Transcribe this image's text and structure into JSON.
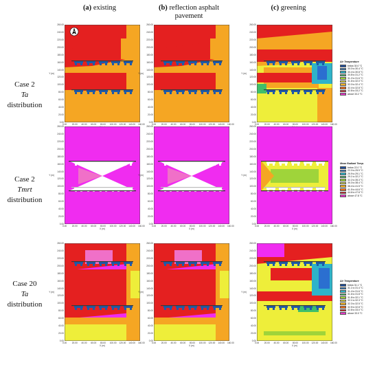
{
  "columns": [
    {
      "letter": "(a)",
      "text": "existing"
    },
    {
      "letter": "(b)",
      "text": "reflection asphalt pavement"
    },
    {
      "letter": "(c)",
      "text": "greening"
    }
  ],
  "rows": [
    {
      "case": "Case 2",
      "var": "Ta",
      "dist": "distribution"
    },
    {
      "case": "Case 2",
      "var": "Tmrt",
      "dist": "distribution"
    },
    {
      "case": "Case 20",
      "var": "Ta",
      "dist": "distribution"
    }
  ],
  "axes": {
    "y_ticks": [
      "260.00",
      "240.00",
      "220.00",
      "200.00",
      "180.00",
      "160.00",
      "140.00",
      "120.00",
      "100.00",
      "80.00",
      "60.00",
      "40.00",
      "20.00",
      "0.00"
    ],
    "x_ticks": [
      "0.00",
      "20.00",
      "40.00",
      "60.00",
      "80.00",
      "100.00",
      "120.00",
      "140.00",
      "160.00"
    ],
    "x_label": "X (m)",
    "y_label": "Y (m)"
  },
  "legends": [
    {
      "title": "Air Temperature",
      "items": [
        {
          "label": "below 30.0 °C",
          "color": "#1f4e9c"
        },
        {
          "label": "30.0 to 30.4 °C",
          "color": "#2b7bc4"
        },
        {
          "label": "30.4 to 30.8 °C",
          "color": "#2fb3c9"
        },
        {
          "label": "30.8 to 31.2 °C",
          "color": "#3fbf6a"
        },
        {
          "label": "31.2 to 31.6 °C",
          "color": "#9fd43a"
        },
        {
          "label": "31.6 to 32.0 °C",
          "color": "#e8e83a"
        },
        {
          "label": "32.0 to 32.4 °C",
          "color": "#f5b324"
        },
        {
          "label": "32.4 to 32.8 °C",
          "color": "#f0701c"
        },
        {
          "label": "32.8 to 33.2 °C",
          "color": "#e42020"
        },
        {
          "label": "above 33.2 °C",
          "color": "#e838c8"
        }
      ]
    },
    {
      "title": "Mean Radiant Temp.",
      "items": [
        {
          "label": "below 22.0 °C",
          "color": "#1f4e9c"
        },
        {
          "label": "22.0 to 25.9 °C",
          "color": "#2b7bc4"
        },
        {
          "label": "25.9 to 29.1 °C",
          "color": "#2fb3c9"
        },
        {
          "label": "29.1 to 32.2 °C",
          "color": "#3fbf6a"
        },
        {
          "label": "32.2 to 35.3 °C",
          "color": "#9fd43a"
        },
        {
          "label": "35.3 to 38.4 °C",
          "color": "#e8e83a"
        },
        {
          "label": "38.4 to 41.5 °C",
          "color": "#f5b324"
        },
        {
          "label": "41.5 to 44.6 °C",
          "color": "#f0701c"
        },
        {
          "label": "44.6 to 47.8 °C",
          "color": "#e42020"
        },
        {
          "label": "above 47.8 °C",
          "color": "#e838c8"
        }
      ]
    },
    {
      "title": "Air Temperature",
      "items": [
        {
          "label": "below 31.1 °C",
          "color": "#1f4e9c"
        },
        {
          "label": "31.1 to 31.4 °C",
          "color": "#2b7bc4"
        },
        {
          "label": "31.4 to 31.6 °C",
          "color": "#2fb3c9"
        },
        {
          "label": "31.6 to 31.8 °C",
          "color": "#3fbf6a"
        },
        {
          "label": "31.8 to 32.1 °C",
          "color": "#9fd43a"
        },
        {
          "label": "32.1 to 32.3 °C",
          "color": "#e8e83a"
        },
        {
          "label": "32.3 to 32.5 °C",
          "color": "#f5b324"
        },
        {
          "label": "32.5 to 32.8 °C",
          "color": "#f0701c"
        },
        {
          "label": "32.8 to 33.0 °C",
          "color": "#e42020"
        },
        {
          "label": "above 33.0 °C",
          "color": "#e838c8"
        }
      ]
    }
  ],
  "colors": {
    "red": "#e42020",
    "orange": "#f5a623",
    "dark_orange": "#f0701c",
    "yellow": "#eeee3a",
    "magenta": "#f02cf0",
    "pink": "#f070c8",
    "blue": "#2b6fd0",
    "cyan": "#2fb3c9",
    "green": "#3fbf6a",
    "lime": "#9fd43a",
    "white": "#ffffff",
    "building": "#1f5aa8"
  },
  "north_arrow": "N"
}
